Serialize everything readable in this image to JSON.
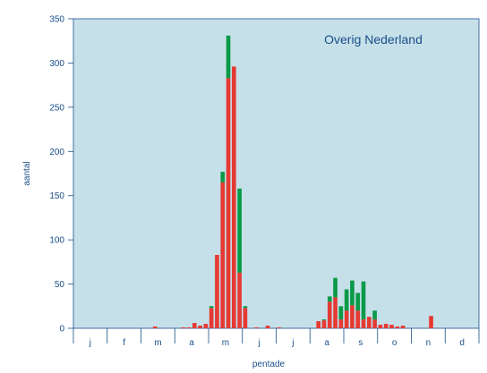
{
  "chart_data": {
    "type": "bar",
    "stacked": true,
    "title": "Overig Nederland",
    "xlabel": "pentade",
    "ylabel": "aantal",
    "ylim": [
      0,
      350
    ],
    "yticks": [
      0,
      50,
      100,
      150,
      200,
      250,
      300,
      350
    ],
    "grid": false,
    "months": [
      "j",
      "f",
      "m",
      "a",
      "m",
      "j",
      "j",
      "a",
      "s",
      "o",
      "n",
      "d"
    ],
    "pentades_per_month": 6,
    "series": [
      {
        "color": "#e53a33",
        "values": [
          0,
          0,
          0,
          0,
          0,
          0,
          0,
          0,
          0,
          0,
          0,
          0,
          0,
          0,
          2,
          0,
          0,
          0,
          0,
          1,
          1,
          6,
          3,
          5,
          23,
          83,
          165,
          283,
          296,
          63,
          23,
          0,
          1,
          0,
          3,
          0,
          1,
          0,
          0,
          0,
          0,
          0,
          0,
          8,
          9,
          30,
          35,
          10,
          20,
          26,
          20,
          10,
          13,
          10,
          4,
          5,
          4,
          2,
          3,
          0,
          0,
          0,
          0,
          14,
          0,
          0,
          0,
          0,
          0,
          0,
          0,
          0
        ]
      },
      {
        "color": "#0a9a48",
        "values": [
          0,
          0,
          0,
          0,
          0,
          0,
          0,
          0,
          0,
          0,
          0,
          0,
          0,
          0,
          0,
          0,
          0,
          0,
          0,
          0,
          0,
          0,
          0,
          0,
          2,
          0,
          12,
          48,
          0,
          95,
          2,
          0,
          0,
          0,
          0,
          0,
          0,
          0,
          0,
          0,
          0,
          0,
          0,
          0,
          1,
          6,
          22,
          15,
          24,
          28,
          20,
          43,
          0,
          10,
          0,
          0,
          0,
          0,
          0,
          0,
          0,
          0,
          0,
          0,
          0,
          0,
          0,
          0,
          0,
          0,
          0,
          0
        ]
      }
    ]
  },
  "colors": {
    "plot_background": "#c6e0ea",
    "axis": "#1a4f8a",
    "text": "#1a4f8a"
  }
}
